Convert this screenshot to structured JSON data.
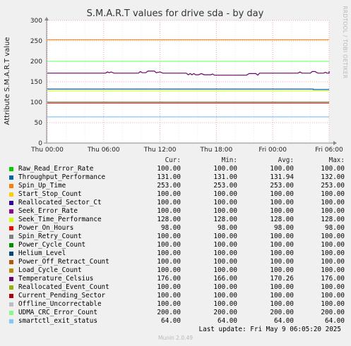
{
  "chart_data": {
    "type": "line",
    "title": "S.M.A.R.T values for drive sda - by day",
    "ylabel": "Attribute S.M.A.R.T value",
    "side_label": "RRDTOOL / TOBI OETIKER",
    "ylim": [
      0,
      300
    ],
    "yticks": [
      0,
      50,
      100,
      150,
      200,
      250,
      300
    ],
    "xlim_hours": [
      -30,
      0
    ],
    "xticks": [
      {
        "label": "Thu 00:00",
        "h": -30
      },
      {
        "label": "Thu 06:00",
        "h": -24
      },
      {
        "label": "Thu 12:00",
        "h": -18
      },
      {
        "label": "Thu 18:00",
        "h": -12
      },
      {
        "label": "Fri 00:00",
        "h": -6
      },
      {
        "label": "Fri 06:00",
        "h": 0
      }
    ],
    "grid": true,
    "columns": [
      "Cur:",
      "Min:",
      "Avg:",
      "Max:"
    ],
    "series": [
      {
        "name": "Raw_Read_Error_Rate",
        "color": "#00cc00",
        "cur": "100.00",
        "min": "100.00",
        "avg": "100.00",
        "max": "100.00",
        "values": [
          [
            -32,
            100
          ],
          [
            0,
            100
          ]
        ]
      },
      {
        "name": "Throughput_Performance",
        "color": "#0066b3",
        "cur": "131.00",
        "min": "131.00",
        "avg": "131.94",
        "max": "132.00",
        "values": [
          [
            -32,
            132
          ],
          [
            -1.7,
            132
          ],
          [
            -1.7,
            131
          ],
          [
            0,
            131
          ]
        ]
      },
      {
        "name": "Spin_Up_Time",
        "color": "#ff8000",
        "cur": "253.00",
        "min": "253.00",
        "avg": "253.00",
        "max": "253.00",
        "values": [
          [
            -32,
            253
          ],
          [
            0,
            253
          ]
        ]
      },
      {
        "name": "Start_Stop_Count",
        "color": "#ffcc00",
        "cur": "100.00",
        "min": "100.00",
        "avg": "100.00",
        "max": "100.00",
        "values": [
          [
            -32,
            100
          ],
          [
            0,
            100
          ]
        ]
      },
      {
        "name": "Reallocated_Sector_Ct",
        "color": "#330099",
        "cur": "100.00",
        "min": "100.00",
        "avg": "100.00",
        "max": "100.00",
        "values": [
          [
            -32,
            100
          ],
          [
            0,
            100
          ]
        ]
      },
      {
        "name": "Seek_Error_Rate",
        "color": "#990099",
        "cur": "100.00",
        "min": "100.00",
        "avg": "100.00",
        "max": "100.00",
        "values": [
          [
            -32,
            100
          ],
          [
            0,
            100
          ]
        ]
      },
      {
        "name": "Seek_Time_Performance",
        "color": "#ccff00",
        "cur": "128.00",
        "min": "128.00",
        "avg": "128.00",
        "max": "128.00",
        "values": [
          [
            -32,
            128
          ],
          [
            0,
            128
          ]
        ]
      },
      {
        "name": "Power_On_Hours",
        "color": "#ff0000",
        "cur": "98.00",
        "min": "98.00",
        "avg": "98.00",
        "max": "98.00",
        "values": [
          [
            -32,
            98
          ],
          [
            0,
            98
          ]
        ]
      },
      {
        "name": "Spin_Retry_Count",
        "color": "#808080",
        "cur": "100.00",
        "min": "100.00",
        "avg": "100.00",
        "max": "100.00",
        "values": [
          [
            -32,
            100
          ],
          [
            0,
            100
          ]
        ]
      },
      {
        "name": "Power_Cycle_Count",
        "color": "#008f00",
        "cur": "100.00",
        "min": "100.00",
        "avg": "100.00",
        "max": "100.00",
        "values": [
          [
            -32,
            100
          ],
          [
            0,
            100
          ]
        ]
      },
      {
        "name": "Helium_Level",
        "color": "#00487d",
        "cur": "100.00",
        "min": "100.00",
        "avg": "100.00",
        "max": "100.00",
        "values": [
          [
            -32,
            100
          ],
          [
            0,
            100
          ]
        ]
      },
      {
        "name": "Power_Off_Retract_Count",
        "color": "#b35a00",
        "cur": "100.00",
        "min": "100.00",
        "avg": "100.00",
        "max": "100.00",
        "values": [
          [
            -32,
            100
          ],
          [
            0,
            100
          ]
        ]
      },
      {
        "name": "Load_Cycle_Count",
        "color": "#b38f00",
        "cur": "100.00",
        "min": "100.00",
        "avg": "100.00",
        "max": "100.00",
        "values": [
          [
            -32,
            100
          ],
          [
            0,
            100
          ]
        ]
      },
      {
        "name": "Temperature_Celsius",
        "color": "#6b006b",
        "cur": "176.00",
        "min": "166.00",
        "avg": "170.26",
        "max": "176.00",
        "values": [
          [
            -32,
            171
          ],
          [
            -23.8,
            171
          ],
          [
            -23.6,
            174
          ],
          [
            -23.4,
            172
          ],
          [
            -23.2,
            174
          ],
          [
            -22.9,
            171
          ],
          [
            -20.3,
            171
          ],
          [
            -20.1,
            175
          ],
          [
            -19.9,
            172
          ],
          [
            -19.5,
            172
          ],
          [
            -19.3,
            176
          ],
          [
            -18.6,
            176
          ],
          [
            -18.4,
            172
          ],
          [
            -18.0,
            174
          ],
          [
            -17.7,
            171
          ],
          [
            -15.2,
            171
          ],
          [
            -15.0,
            167
          ],
          [
            -14.8,
            170
          ],
          [
            -14.6,
            167
          ],
          [
            -14.4,
            170
          ],
          [
            -14.2,
            167
          ],
          [
            -13.9,
            167
          ],
          [
            -13.6,
            170
          ],
          [
            -13.3,
            167
          ],
          [
            -12.6,
            167
          ],
          [
            -12.4,
            169
          ],
          [
            -12.2,
            166
          ],
          [
            -8.8,
            166
          ],
          [
            -8.5,
            170
          ],
          [
            -7.8,
            170
          ],
          [
            -7.6,
            166
          ],
          [
            -7.4,
            171
          ],
          [
            -3.3,
            171
          ],
          [
            -3.1,
            174
          ],
          [
            -2.9,
            171
          ],
          [
            -2.0,
            171
          ],
          [
            -1.8,
            175
          ],
          [
            -1.5,
            175
          ],
          [
            -1.2,
            171
          ],
          [
            -0.6,
            171
          ],
          [
            -0.4,
            173
          ],
          [
            -0.2,
            171
          ],
          [
            1.4,
            171
          ],
          [
            1.6,
            176
          ],
          [
            4.5,
            176
          ],
          [
            4.7,
            176
          ],
          [
            5.3,
            176
          ]
        ]
      },
      {
        "name": "Reallocated_Event_Count",
        "color": "#8fb300",
        "cur": "100.00",
        "min": "100.00",
        "avg": "100.00",
        "max": "100.00",
        "values": [
          [
            -32,
            100
          ],
          [
            0,
            100
          ]
        ]
      },
      {
        "name": "Current_Pending_Sector",
        "color": "#b30000",
        "cur": "100.00",
        "min": "100.00",
        "avg": "100.00",
        "max": "100.00",
        "values": [
          [
            -32,
            100
          ],
          [
            0,
            100
          ]
        ]
      },
      {
        "name": "Offline_Uncorrectable",
        "color": "#bebebe",
        "cur": "100.00",
        "min": "100.00",
        "avg": "100.00",
        "max": "100.00",
        "values": [
          [
            -32,
            100
          ],
          [
            0,
            100
          ]
        ]
      },
      {
        "name": "UDMA_CRC_Error_Count",
        "color": "#80ff80",
        "cur": "200.00",
        "min": "200.00",
        "avg": "200.00",
        "max": "200.00",
        "values": [
          [
            -32,
            200
          ],
          [
            0,
            200
          ]
        ]
      },
      {
        "name": "smartctl_exit_status",
        "color": "#80c9ff",
        "cur": "64.00",
        "min": "64.00",
        "avg": "64.00",
        "max": "64.00",
        "values": [
          [
            -32,
            64
          ],
          [
            0,
            64
          ]
        ]
      }
    ]
  },
  "footer": {
    "last_update": "Last update: Fri May  9 06:05:20 2025",
    "version": "Munin 2.0.49"
  }
}
